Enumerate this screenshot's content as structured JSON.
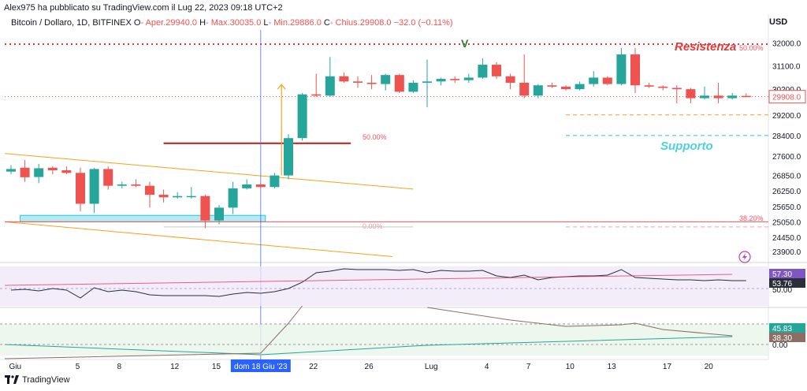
{
  "header": {
    "published": "Alex975 ha pubblicato su TradingView.com il Lug 22, 2023 09:18 UTC+2",
    "symbol": "Bitcoin / Dollaro, 1D, BITFINEX",
    "o_label": "O",
    "o_val": "- Aper.29940.0",
    "h_label": "H",
    "h_val": "- Max.30035.0",
    "l_label": "L",
    "l_val": "- Min.29886.0",
    "c_label": "C",
    "c_val": "- Chius.29908.0",
    "change": "−32.0 (−0.11%)",
    "currency": "USD"
  },
  "footer": {
    "brand": "TradingView"
  },
  "colors": {
    "bull": "#26a69a",
    "bear": "#ef5350",
    "fib": "#f7525f",
    "orange": "#f7a21b",
    "rsi": "#7e57c2",
    "support": "#26c6da",
    "resistance": "#e53935"
  },
  "chart_data": {
    "type": "candlestick",
    "title": "Bitcoin / Dollaro, 1D, BITFINEX",
    "y_ticks": [
      "32000.0",
      "31100.0",
      "30200.0",
      "29200.0",
      "28400.0",
      "27600.0",
      "26850.0",
      "26250.0",
      "25650.0",
      "25050.0",
      "24450.0",
      "23900.0"
    ],
    "x_ticks": [
      "Giu",
      "5",
      "8",
      "12",
      "15",
      "dom 18 Giu '23",
      "22",
      "26",
      "Lug",
      "4",
      "7",
      "10",
      "13",
      "17",
      "20"
    ],
    "last_price": "29908.0",
    "candles": [
      {
        "o": 27000,
        "h": 27250,
        "l": 26900,
        "c": 27100
      },
      {
        "o": 27150,
        "h": 27450,
        "l": 26600,
        "c": 26780
      },
      {
        "o": 26790,
        "h": 27300,
        "l": 26550,
        "c": 27130
      },
      {
        "o": 27150,
        "h": 27200,
        "l": 26900,
        "c": 27050
      },
      {
        "o": 27050,
        "h": 27200,
        "l": 26900,
        "c": 26950
      },
      {
        "o": 26950,
        "h": 27150,
        "l": 25450,
        "c": 25750
      },
      {
        "o": 25750,
        "h": 27150,
        "l": 25400,
        "c": 27100
      },
      {
        "o": 27100,
        "h": 27200,
        "l": 26300,
        "c": 26450
      },
      {
        "o": 26450,
        "h": 26600,
        "l": 26350,
        "c": 26500
      },
      {
        "o": 26500,
        "h": 26700,
        "l": 26400,
        "c": 26450
      },
      {
        "o": 26450,
        "h": 26600,
        "l": 25600,
        "c": 26100
      },
      {
        "o": 26100,
        "h": 26300,
        "l": 25800,
        "c": 26000
      },
      {
        "o": 26000,
        "h": 26200,
        "l": 25950,
        "c": 26050
      },
      {
        "o": 26030,
        "h": 26400,
        "l": 25950,
        "c": 26050
      },
      {
        "o": 26050,
        "h": 26100,
        "l": 24800,
        "c": 25100
      },
      {
        "o": 25100,
        "h": 25700,
        "l": 24950,
        "c": 25600
      },
      {
        "o": 25600,
        "h": 26600,
        "l": 25350,
        "c": 26350
      },
      {
        "o": 26350,
        "h": 26700,
        "l": 26300,
        "c": 26500
      },
      {
        "o": 26500,
        "h": 26550,
        "l": 26350,
        "c": 26400
      },
      {
        "o": 26400,
        "h": 26950,
        "l": 26350,
        "c": 26850
      },
      {
        "o": 26850,
        "h": 28450,
        "l": 26700,
        "c": 28300
      },
      {
        "o": 28300,
        "h": 30050,
        "l": 28200,
        "c": 30000
      },
      {
        "o": 30000,
        "h": 30800,
        "l": 29900,
        "c": 29950
      },
      {
        "o": 29950,
        "h": 31450,
        "l": 29900,
        "c": 30700
      },
      {
        "o": 30700,
        "h": 30850,
        "l": 30450,
        "c": 30500
      },
      {
        "o": 30500,
        "h": 30700,
        "l": 30250,
        "c": 30450
      },
      {
        "o": 30450,
        "h": 30750,
        "l": 30200,
        "c": 30400
      },
      {
        "o": 30400,
        "h": 30800,
        "l": 30150,
        "c": 30750
      },
      {
        "o": 30750,
        "h": 30800,
        "l": 30050,
        "c": 30100
      },
      {
        "o": 30100,
        "h": 30550,
        "l": 30050,
        "c": 30450
      },
      {
        "o": 30450,
        "h": 31350,
        "l": 29500,
        "c": 30500
      },
      {
        "o": 30500,
        "h": 30650,
        "l": 30350,
        "c": 30600
      },
      {
        "o": 30600,
        "h": 30700,
        "l": 30450,
        "c": 30550
      },
      {
        "o": 30550,
        "h": 30800,
        "l": 30450,
        "c": 30650
      },
      {
        "o": 30650,
        "h": 31400,
        "l": 30600,
        "c": 31150
      },
      {
        "o": 31150,
        "h": 31250,
        "l": 30600,
        "c": 30700
      },
      {
        "o": 30700,
        "h": 30800,
        "l": 30200,
        "c": 30450
      },
      {
        "o": 30450,
        "h": 31550,
        "l": 29850,
        "c": 29950
      },
      {
        "o": 29950,
        "h": 30400,
        "l": 29850,
        "c": 30350
      },
      {
        "o": 30350,
        "h": 30450,
        "l": 30250,
        "c": 30300
      },
      {
        "o": 30300,
        "h": 30350,
        "l": 30150,
        "c": 30200
      },
      {
        "o": 30200,
        "h": 30500,
        "l": 30150,
        "c": 30400
      },
      {
        "o": 30400,
        "h": 30900,
        "l": 30300,
        "c": 30650
      },
      {
        "o": 30650,
        "h": 30700,
        "l": 30350,
        "c": 30400
      },
      {
        "o": 30400,
        "h": 31800,
        "l": 30350,
        "c": 31550
      },
      {
        "o": 31550,
        "h": 31800,
        "l": 30050,
        "c": 30350
      },
      {
        "o": 30350,
        "h": 30450,
        "l": 30250,
        "c": 30300
      },
      {
        "o": 30300,
        "h": 30350,
        "l": 30150,
        "c": 30250
      },
      {
        "o": 30250,
        "h": 30350,
        "l": 29650,
        "c": 30200
      },
      {
        "o": 30200,
        "h": 30250,
        "l": 29650,
        "c": 29850
      },
      {
        "o": 29850,
        "h": 30300,
        "l": 29800,
        "c": 29950
      },
      {
        "o": 29950,
        "h": 30450,
        "l": 29650,
        "c": 29850
      },
      {
        "o": 29850,
        "h": 30050,
        "l": 29800,
        "c": 29950
      },
      {
        "o": 29940,
        "h": 30035,
        "l": 29886,
        "c": 29908
      }
    ],
    "annotations": {
      "wave_label": "V",
      "resistance_label": "Resistenza",
      "support_label": "Supporto",
      "fib_top": "50.00%",
      "fib_mid": "50.00%",
      "fib_low": "38.20%",
      "fib_zero": "0.00%"
    },
    "rsi": {
      "badges": [
        "57.30",
        "53.76"
      ],
      "level": "50.00"
    },
    "osc": {
      "badges": [
        "45.83",
        "38.30"
      ],
      "zero": "0.00"
    }
  }
}
